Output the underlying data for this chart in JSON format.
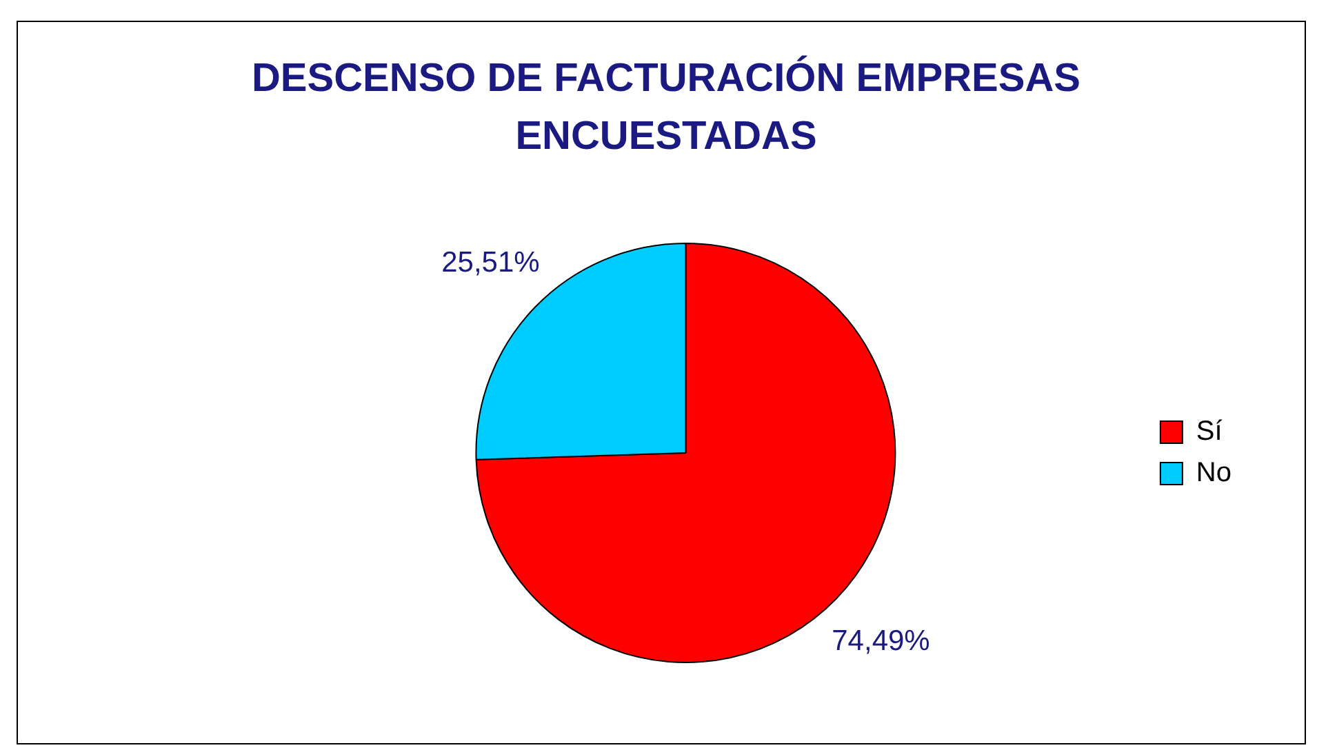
{
  "chart_data": {
    "type": "pie",
    "title": "DESCENSO DE FACTURACIÓN EMPRESAS ENCUESTADAS",
    "categories": [
      "Sí",
      "No"
    ],
    "values": [
      74.49,
      25.51
    ],
    "colors": [
      "#ff0000",
      "#00ccff"
    ],
    "value_labels": [
      "74,49%",
      "25,51%"
    ],
    "legend": "right"
  }
}
